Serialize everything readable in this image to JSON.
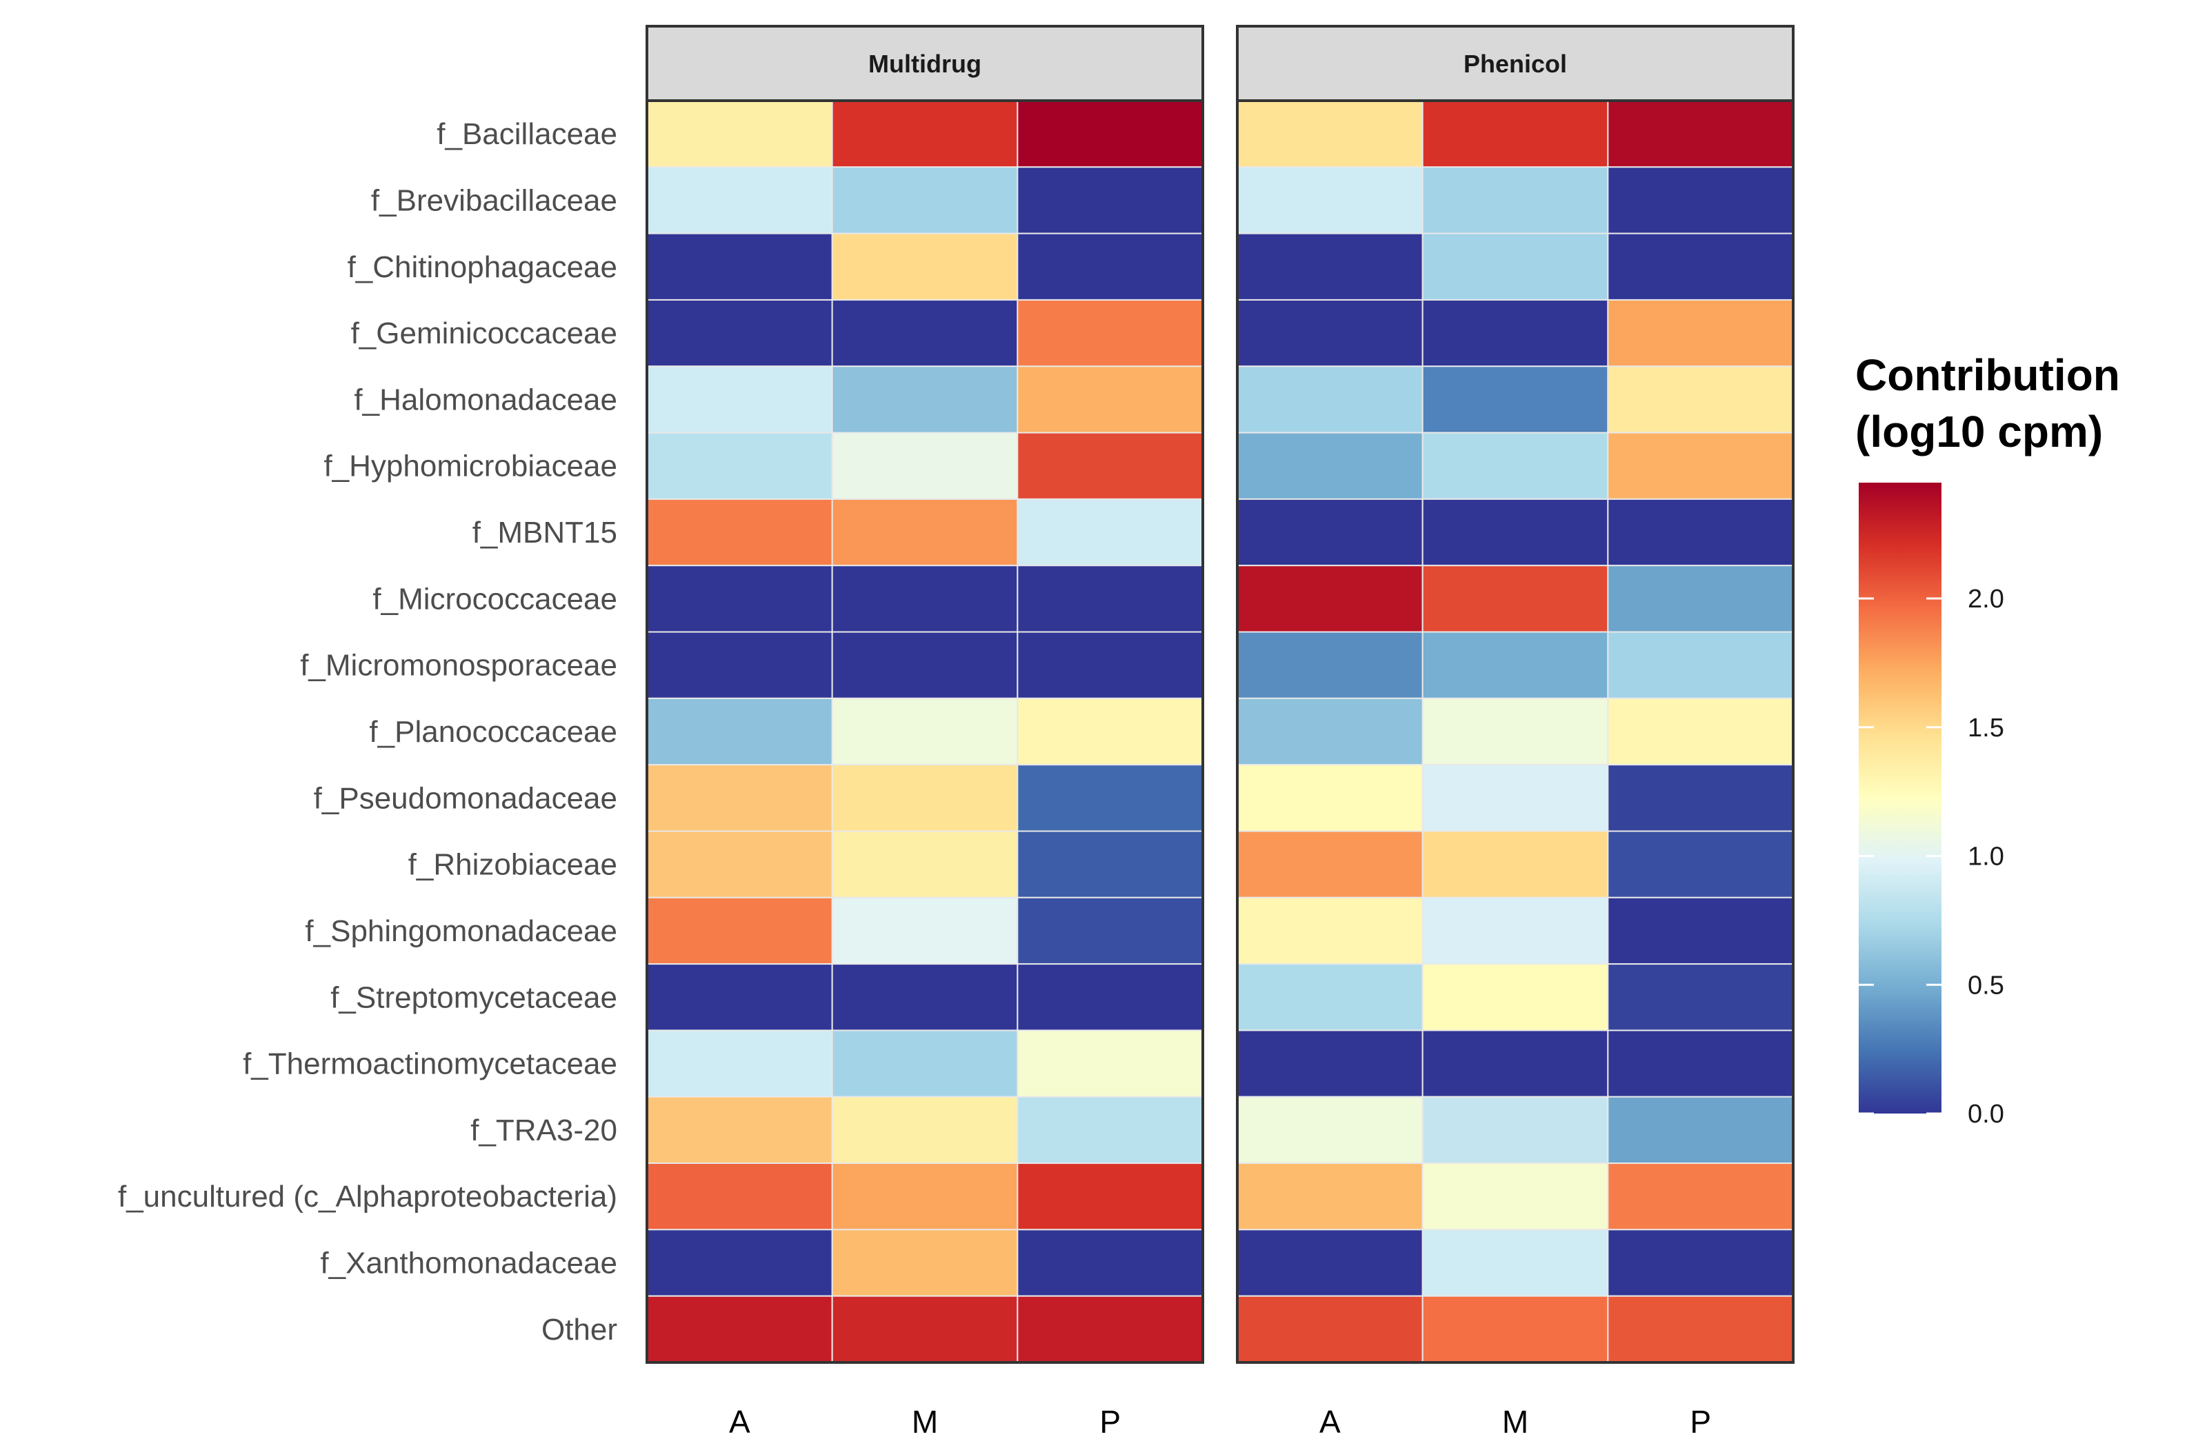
{
  "chart_data": {
    "type": "heatmap",
    "rows": [
      "f_Bacillaceae",
      "f_Brevibacillaceae",
      "f_Chitinophagaceae",
      "f_Geminicoccaceae",
      "f_Halomonadaceae",
      "f_Hyphomicrobiaceae",
      "f_MBNT15",
      "f_Micrococcaceae",
      "f_Micromonosporaceae",
      "f_Planococcaceae",
      "f_Pseudomonadaceae",
      "f_Rhizobiaceae",
      "f_Sphingomonadaceae",
      "f_Streptomycetaceae",
      "f_Thermoactinomycetaceae",
      "f_TRA3-20",
      "f_uncultured (c_Alphaproteobacteria)",
      "f_Xanthomonadaceae",
      "Other"
    ],
    "columns": [
      "A",
      "M",
      "P"
    ],
    "panels": [
      {
        "name": "Multidrug",
        "values": [
          [
            1.35,
            2.2,
            2.45
          ],
          [
            0.9,
            0.7,
            0.0
          ],
          [
            0.0,
            1.5,
            0.0
          ],
          [
            0.0,
            0.0,
            1.9
          ],
          [
            0.9,
            0.6,
            1.7
          ],
          [
            0.8,
            1.05,
            2.1
          ],
          [
            1.9,
            1.8,
            0.9
          ],
          [
            0.0,
            0.0,
            0.0
          ],
          [
            0.0,
            0.0,
            0.0
          ],
          [
            0.6,
            1.1,
            1.3
          ],
          [
            1.6,
            1.45,
            0.2
          ],
          [
            1.6,
            1.35,
            0.15
          ],
          [
            1.9,
            1.0,
            0.1
          ],
          [
            0.0,
            0.0,
            0.0
          ],
          [
            0.9,
            0.7,
            1.15
          ],
          [
            1.6,
            1.35,
            0.8
          ],
          [
            2.0,
            1.75,
            2.2
          ],
          [
            0.0,
            1.65,
            0.0
          ],
          [
            2.3,
            2.25,
            2.3
          ]
        ]
      },
      {
        "name": "Phenicol",
        "values": [
          [
            1.45,
            2.2,
            2.4
          ],
          [
            0.9,
            0.7,
            0.0
          ],
          [
            0.0,
            0.7,
            0.0
          ],
          [
            0.0,
            0.0,
            1.75
          ],
          [
            0.7,
            0.3,
            1.4
          ],
          [
            0.5,
            0.75,
            1.7
          ],
          [
            0.0,
            0.0,
            0.0
          ],
          [
            2.35,
            2.1,
            0.45
          ],
          [
            0.35,
            0.5,
            0.7
          ],
          [
            0.6,
            1.1,
            1.3
          ],
          [
            1.25,
            0.95,
            0.05
          ],
          [
            1.8,
            1.5,
            0.1
          ],
          [
            1.3,
            0.95,
            0.0
          ],
          [
            0.75,
            1.25,
            0.05
          ],
          [
            0.0,
            0.0,
            0.0
          ],
          [
            1.1,
            0.85,
            0.45
          ],
          [
            1.65,
            1.15,
            1.9
          ],
          [
            0.0,
            0.9,
            0.0
          ],
          [
            2.1,
            1.95,
            2.05
          ]
        ]
      }
    ],
    "legend": {
      "title_line1": "Contribution",
      "title_line2": "(log10 cpm)",
      "min": 0.0,
      "max": 2.45,
      "ticks": [
        0.0,
        0.5,
        1.0,
        1.5,
        2.0
      ],
      "tick_labels": [
        "0.0",
        "0.5",
        "1.0",
        "1.5",
        "2.0"
      ],
      "palette": [
        "#313695",
        "#4575b4",
        "#74add1",
        "#abd9e9",
        "#e0f3f8",
        "#ffffbf",
        "#fee090",
        "#fdae61",
        "#f46d43",
        "#d73027",
        "#a50026"
      ]
    }
  }
}
